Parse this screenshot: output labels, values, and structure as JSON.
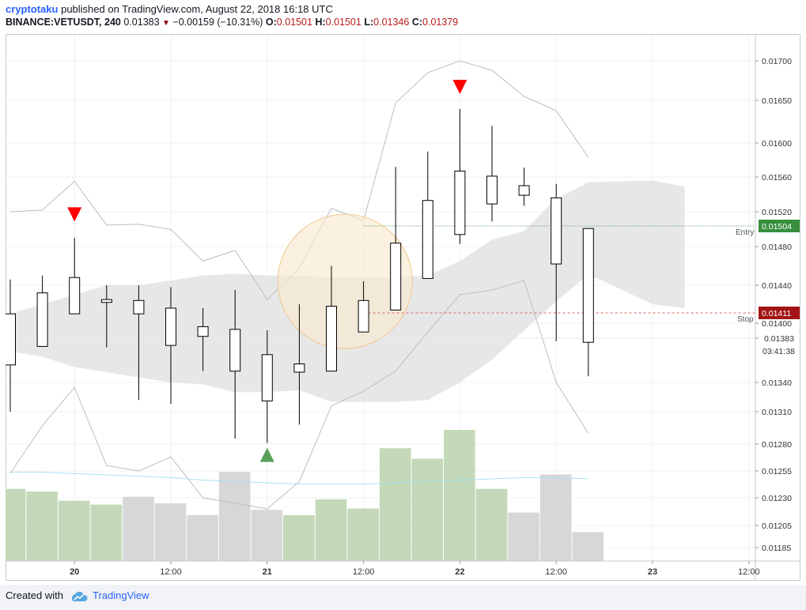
{
  "header": {
    "author": "cryptotaku",
    "published": "published on TradingView.com, August 22, 2018 16:18 UTC",
    "symbol": "BINANCE:VETUSDT, 240",
    "last": "0.01383",
    "change": "−0.00159 (−10.31%)",
    "o_label": "O:",
    "o": "0.01501",
    "h_label": "H:",
    "h": "0.01501",
    "l_label": "L:",
    "l": "0.01346",
    "c_label": "C:",
    "c": "0.01379"
  },
  "footer": {
    "created": "Created with",
    "brand": "TradingView"
  },
  "chart_data": {
    "type": "candlestick",
    "x_ticks": [
      {
        "i": 2,
        "label": "20",
        "bold": true
      },
      {
        "i": 5,
        "label": "12:00"
      },
      {
        "i": 8,
        "label": "21",
        "bold": true
      },
      {
        "i": 11,
        "label": "12:00"
      },
      {
        "i": 14,
        "label": "22",
        "bold": true
      },
      {
        "i": 17,
        "label": "12:00"
      },
      {
        "i": 20,
        "label": "23",
        "bold": true
      },
      {
        "i": 23,
        "label": "12:00"
      }
    ],
    "y_ticks": [
      "0.01185",
      "0.01205",
      "0.01230",
      "0.01255",
      "0.01280",
      "0.01310",
      "0.01340",
      "0.01400",
      "0.01440",
      "0.01480",
      "0.01520",
      "0.01560",
      "0.01600",
      "0.01650",
      "0.01700"
    ],
    "candles": [
      {
        "o": 0.0141,
        "h": 0.01446,
        "l": 0.0131,
        "c": 0.01357
      },
      {
        "o": 0.01375,
        "h": 0.0145,
        "l": null,
        "c": 0.01432
      },
      {
        "o": 0.0141,
        "h": 0.0149,
        "l": null,
        "c": 0.01448
      },
      {
        "o": 0.01425,
        "h": 0.0144,
        "l": 0.01374,
        "c": 0.01422
      },
      {
        "o": 0.0141,
        "h": 0.0144,
        "l": 0.01322,
        "c": 0.01424
      },
      {
        "o": 0.01416,
        "h": 0.01438,
        "l": 0.01318,
        "c": 0.01376
      },
      {
        "o": 0.01396,
        "h": 0.01416,
        "l": 0.01351,
        "c": 0.01385
      },
      {
        "o": 0.01393,
        "h": 0.01435,
        "l": 0.01285,
        "c": 0.01351
      },
      {
        "o": 0.01367,
        "h": 0.01392,
        "l": 0.01281,
        "c": 0.01321
      },
      {
        "o": 0.01358,
        "h": 0.0142,
        "l": 0.01298,
        "c": 0.0135
      },
      {
        "o": 0.01351,
        "h": 0.0146,
        "l": null,
        "c": 0.01418
      },
      {
        "o": 0.0139,
        "h": 0.01444,
        "l": null,
        "c": 0.01424
      },
      {
        "o": 0.01414,
        "h": 0.01572,
        "l": null,
        "c": 0.01484
      },
      {
        "o": 0.01447,
        "h": 0.0159,
        "l": null,
        "c": 0.01533
      },
      {
        "o": 0.01494,
        "h": 0.0164,
        "l": 0.01483,
        "c": 0.01567
      },
      {
        "o": 0.01529,
        "h": 0.0162,
        "l": 0.01509,
        "c": 0.01561
      },
      {
        "o": 0.0155,
        "h": 0.01571,
        "l": 0.01527,
        "c": 0.01539
      },
      {
        "o": 0.01536,
        "h": 0.01552,
        "l": 0.0138,
        "c": 0.01462
      },
      {
        "o": 0.01501,
        "h": 0.01501,
        "l": 0.01346,
        "c": 0.01379
      }
    ],
    "volume": [
      {
        "v": 0.55,
        "dir": "up"
      },
      {
        "v": 0.53,
        "dir": "up"
      },
      {
        "v": 0.46,
        "dir": "up"
      },
      {
        "v": 0.43,
        "dir": "up"
      },
      {
        "v": 0.49,
        "dir": "down"
      },
      {
        "v": 0.44,
        "dir": "down"
      },
      {
        "v": 0.35,
        "dir": "down"
      },
      {
        "v": 0.68,
        "dir": "down"
      },
      {
        "v": 0.39,
        "dir": "down"
      },
      {
        "v": 0.35,
        "dir": "up"
      },
      {
        "v": 0.47,
        "dir": "up"
      },
      {
        "v": 0.4,
        "dir": "up"
      },
      {
        "v": 0.86,
        "dir": "up"
      },
      {
        "v": 0.78,
        "dir": "up"
      },
      {
        "v": 1.0,
        "dir": "up"
      },
      {
        "v": 0.55,
        "dir": "up"
      },
      {
        "v": 0.37,
        "dir": "down"
      },
      {
        "v": 0.66,
        "dir": "down"
      },
      {
        "v": 0.22,
        "dir": "down"
      }
    ],
    "upper_band": [
      0.0152,
      0.01522,
      0.01555,
      0.01505,
      0.01506,
      0.015,
      0.01465,
      0.01476,
      0.01425,
      0.01458,
      0.01524,
      0.0151,
      0.01647,
      0.01685,
      0.017,
      0.01688,
      0.01655,
      0.01638,
      0.01583
    ],
    "lower_band": [
      0.01253,
      0.01297,
      0.01335,
      0.0126,
      0.01255,
      0.01268,
      0.0123,
      0.01225,
      0.0122,
      0.01245,
      0.01316,
      0.01331,
      0.01351,
      0.0139,
      0.0143,
      0.01435,
      0.01445,
      0.0134,
      0.0129
    ],
    "cloud_top": [
      0.0141,
      0.0142,
      0.0143,
      0.0144,
      0.0144,
      0.01445,
      0.0145,
      0.01452,
      0.0145,
      0.0145,
      0.01448,
      0.01448,
      0.01448,
      0.0145,
      0.01465,
      0.01488,
      0.01498,
      0.01535,
      0.01554,
      0.01555,
      0.01556,
      0.01549
    ],
    "cloud_bottom": [
      0.0137,
      0.01365,
      0.01355,
      0.0135,
      0.01345,
      0.0134,
      0.01338,
      0.0133,
      0.0133,
      0.01332,
      0.0132,
      0.0132,
      0.0132,
      0.01322,
      0.0134,
      0.01362,
      0.01392,
      0.01423,
      0.01451,
      0.01436,
      0.0142,
      0.01416
    ],
    "volume_ma": [
      0.52,
      0.52,
      0.51,
      0.5,
      0.49,
      0.48,
      0.46,
      0.45,
      0.44,
      0.43,
      0.43,
      0.43,
      0.44,
      0.45,
      0.46,
      0.47,
      0.48,
      0.48,
      0.47
    ],
    "markers": [
      {
        "i": 2,
        "type": "sell",
        "price": 0.01517
      },
      {
        "i": 8,
        "type": "buy",
        "price": 0.0127
      },
      {
        "i": 14,
        "type": "sell",
        "price": 0.01667
      }
    ],
    "highlight": {
      "center_i": 10.5,
      "price": 0.01444
    },
    "lines": [
      {
        "label": "Entry",
        "price": "0.01504",
        "color": "#388e3c"
      },
      {
        "label": "Stop",
        "price": "0.01411",
        "color": "#b71c1c"
      }
    ],
    "last_price": "0.01383",
    "countdown": "03:41:38"
  }
}
